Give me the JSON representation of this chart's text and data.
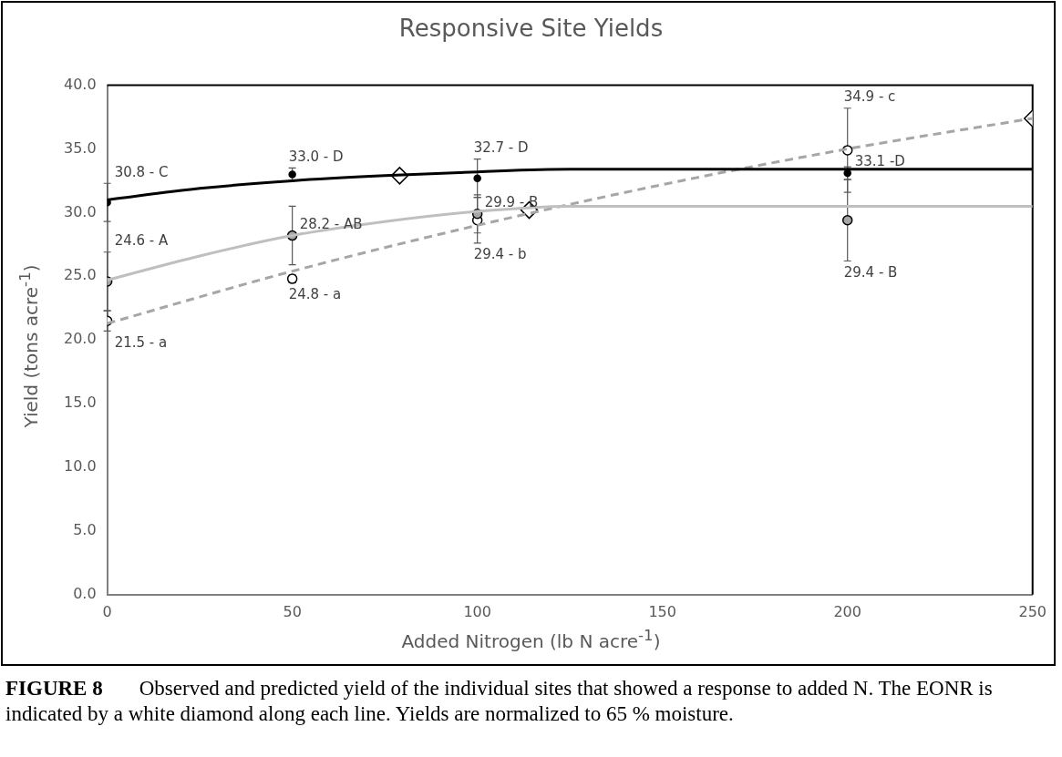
{
  "chart_data": {
    "type": "scatter",
    "title": "Responsive Site Yields",
    "xlabel": "Added Nitrogen (lb N acre$^{-1}$)",
    "ylabel": "Yield (tons acre$^{-1}$)",
    "annotations": [
      "FIGURE 8",
      "Observed and predicted yield of the individual sites that showed a response to added N. The EONR is indicated by a white diamond along each line. Yields are normalized to 65 % moisture."
    ],
    "xlim": [
      0,
      250
    ],
    "xticks": [
      0,
      50,
      100,
      150,
      200,
      250
    ],
    "ylim": [
      0,
      40
    ],
    "yticks": [
      {
        "value": 0,
        "label": "0.0"
      },
      {
        "value": 5,
        "label": "5.0"
      },
      {
        "value": 10,
        "label": "10.0"
      },
      {
        "value": 15,
        "label": "15.0"
      },
      {
        "value": 20,
        "label": "20.0"
      },
      {
        "value": 25,
        "label": "25.0"
      },
      {
        "value": 30,
        "label": "30.0"
      },
      {
        "value": 35,
        "label": "35.0"
      },
      {
        "value": 40,
        "label": "40.0"
      }
    ],
    "grid": false,
    "legend": false,
    "series": [
      {
        "type": "line",
        "color": "#000000",
        "line_style": "solid",
        "marker": "none",
        "x": [
          0,
          25,
          50,
          75,
          100,
          125,
          150,
          200,
          250
        ],
        "values": [
          31.0,
          31.9,
          32.5,
          32.9,
          33.2,
          33.4,
          33.4,
          33.4,
          33.4
        ]
      },
      {
        "type": "line",
        "color": "#bfbfbf",
        "line_style": "solid",
        "marker": "none",
        "x": [
          0,
          25,
          50,
          75,
          100,
          125,
          150,
          200,
          250
        ],
        "values": [
          24.7,
          26.6,
          28.2,
          29.3,
          30.1,
          30.5,
          30.5,
          30.5,
          30.5
        ]
      },
      {
        "type": "line",
        "color": "#a6a6a6",
        "line_style": "dashed",
        "marker": "none",
        "x": [
          0,
          50,
          100,
          150,
          200,
          250
        ],
        "values": [
          21.3,
          25.4,
          29.0,
          32.2,
          35.0,
          37.4
        ]
      },
      {
        "type": "scatter",
        "color": "#000000",
        "marker": "circle",
        "x": [
          0,
          50,
          100,
          200
        ],
        "values": [
          30.8,
          33.0,
          32.7,
          33.1
        ],
        "errors": [
          1.5,
          0.5,
          1.5,
          0.5
        ],
        "value_labels": [
          "30.8 - C",
          "33.0 - D",
          "32.7 - D",
          "33.1 -D"
        ]
      },
      {
        "type": "scatter",
        "color": "#a6a6a6",
        "marker": "circle",
        "x": [
          0,
          50,
          100,
          200
        ],
        "values": [
          24.6,
          28.2,
          29.9,
          29.4
        ],
        "errors": [
          2.3,
          2.3,
          1.5,
          3.2
        ],
        "value_labels": [
          "24.6 - A",
          "28.2 - AB",
          "29.9 - B",
          "29.4 - B"
        ]
      },
      {
        "type": "scatter",
        "color": "#ffffff",
        "marker": "circle",
        "x": [
          0,
          50,
          100,
          200
        ],
        "values": [
          21.5,
          24.8,
          29.4,
          34.9
        ],
        "errors": [
          0.8,
          0.3,
          1.8,
          3.3
        ],
        "value_labels": [
          "21.5 - a",
          "24.8 - a",
          "29.4 - b",
          "34.9 - c"
        ]
      },
      {
        "type": "scatter",
        "color": "#ffffff",
        "marker": "diamond",
        "x": [
          79,
          114,
          250
        ],
        "values": [
          32.9,
          30.2,
          37.4
        ]
      }
    ]
  }
}
